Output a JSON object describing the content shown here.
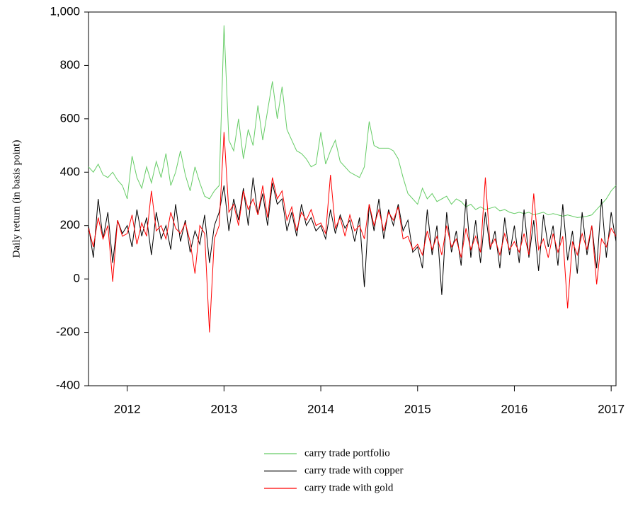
{
  "chart_data": {
    "type": "line",
    "y_label": "Daily return (in basis point)",
    "xlim": [
      2011.6,
      2017.05
    ],
    "xticks": [
      2012,
      2013,
      2014,
      2015,
      2016,
      2017
    ],
    "ylim": [
      -400,
      1000
    ],
    "yticks": [
      -400,
      -200,
      0,
      200,
      400,
      600,
      800,
      {
        "value": 1000,
        "label": "1,000"
      }
    ],
    "legend": "bottom",
    "x": [
      2011.6,
      2011.65,
      2011.7,
      2011.75,
      2011.8,
      2011.85,
      2011.9,
      2011.95,
      2012,
      2012.05,
      2012.1,
      2012.15,
      2012.2,
      2012.25,
      2012.3,
      2012.35,
      2012.4,
      2012.45,
      2012.5,
      2012.55,
      2012.6,
      2012.65,
      2012.7,
      2012.75,
      2012.8,
      2012.85,
      2012.9,
      2012.95,
      2013,
      2013.05,
      2013.1,
      2013.15,
      2013.2,
      2013.25,
      2013.3,
      2013.35,
      2013.4,
      2013.45,
      2013.5,
      2013.55,
      2013.6,
      2013.65,
      2013.7,
      2013.75,
      2013.8,
      2013.85,
      2013.9,
      2013.95,
      2014,
      2014.05,
      2014.1,
      2014.15,
      2014.2,
      2014.25,
      2014.3,
      2014.35,
      2014.4,
      2014.45,
      2014.5,
      2014.55,
      2014.6,
      2014.65,
      2014.7,
      2014.75,
      2014.8,
      2014.85,
      2014.9,
      2014.95,
      2015,
      2015.05,
      2015.1,
      2015.15,
      2015.2,
      2015.25,
      2015.3,
      2015.35,
      2015.4,
      2015.45,
      2015.5,
      2015.55,
      2015.6,
      2015.65,
      2015.7,
      2015.75,
      2015.8,
      2015.85,
      2015.9,
      2015.95,
      2016,
      2016.05,
      2016.1,
      2016.15,
      2016.2,
      2016.25,
      2016.3,
      2016.35,
      2016.4,
      2016.45,
      2016.5,
      2016.55,
      2016.6,
      2016.65,
      2016.7,
      2016.75,
      2016.8,
      2016.85,
      2016.9,
      2016.95,
      2017,
      2017.05
    ],
    "series": [
      {
        "name": "carry trade portfolio",
        "color": "#66cc66",
        "values": [
          420,
          400,
          430,
          390,
          380,
          400,
          370,
          350,
          300,
          460,
          380,
          340,
          420,
          360,
          440,
          380,
          470,
          350,
          400,
          480,
          390,
          330,
          420,
          360,
          310,
          300,
          330,
          350,
          950,
          520,
          480,
          600,
          450,
          560,
          500,
          650,
          520,
          630,
          740,
          600,
          720,
          560,
          520,
          480,
          470,
          450,
          420,
          430,
          550,
          430,
          480,
          520,
          440,
          420,
          400,
          390,
          380,
          420,
          590,
          500,
          490,
          490,
          490,
          480,
          450,
          380,
          320,
          300,
          280,
          340,
          300,
          320,
          290,
          300,
          310,
          280,
          300,
          290,
          270,
          280,
          260,
          270,
          260,
          265,
          270,
          255,
          260,
          250,
          245,
          250,
          245,
          250,
          240,
          245,
          250,
          240,
          245,
          240,
          235,
          240,
          235,
          230,
          232,
          235,
          240,
          260,
          280,
          300,
          330,
          350
        ]
      },
      {
        "name": "carry trade with copper",
        "color": "#000000",
        "values": [
          200,
          80,
          300,
          150,
          250,
          60,
          220,
          170,
          200,
          120,
          260,
          160,
          230,
          90,
          250,
          150,
          200,
          110,
          280,
          140,
          220,
          100,
          180,
          130,
          240,
          60,
          200,
          250,
          350,
          180,
          300,
          220,
          340,
          200,
          380,
          240,
          320,
          200,
          360,
          280,
          300,
          180,
          250,
          160,
          280,
          200,
          230,
          180,
          200,
          150,
          260,
          170,
          240,
          190,
          220,
          140,
          230,
          -30,
          280,
          180,
          300,
          150,
          260,
          200,
          280,
          180,
          220,
          100,
          120,
          40,
          260,
          90,
          200,
          -60,
          250,
          100,
          180,
          50,
          300,
          80,
          220,
          60,
          250,
          110,
          180,
          40,
          230,
          90,
          200,
          60,
          260,
          80,
          220,
          30,
          240,
          120,
          200,
          50,
          280,
          70,
          180,
          20,
          250,
          90,
          200,
          40,
          300,
          80,
          250,
          140
        ]
      },
      {
        "name": "carry trade with gold",
        "color": "#ff0000",
        "values": [
          190,
          120,
          230,
          150,
          200,
          -10,
          220,
          160,
          170,
          240,
          130,
          210,
          160,
          330,
          180,
          200,
          150,
          250,
          190,
          170,
          210,
          140,
          20,
          200,
          170,
          -200,
          150,
          200,
          550,
          250,
          280,
          200,
          330,
          260,
          300,
          240,
          350,
          230,
          380,
          300,
          330,
          220,
          270,
          180,
          250,
          220,
          260,
          200,
          210,
          170,
          390,
          190,
          230,
          160,
          240,
          180,
          200,
          150,
          280,
          200,
          260,
          180,
          250,
          220,
          270,
          150,
          160,
          110,
          130,
          90,
          180,
          110,
          160,
          90,
          200,
          120,
          150,
          80,
          190,
          110,
          160,
          100,
          380,
          120,
          150,
          90,
          170,
          110,
          140,
          100,
          170,
          90,
          320,
          110,
          150,
          80,
          170,
          100,
          160,
          -110,
          140,
          90,
          170,
          110,
          200,
          -20,
          150,
          120,
          190,
          160
        ]
      }
    ]
  }
}
